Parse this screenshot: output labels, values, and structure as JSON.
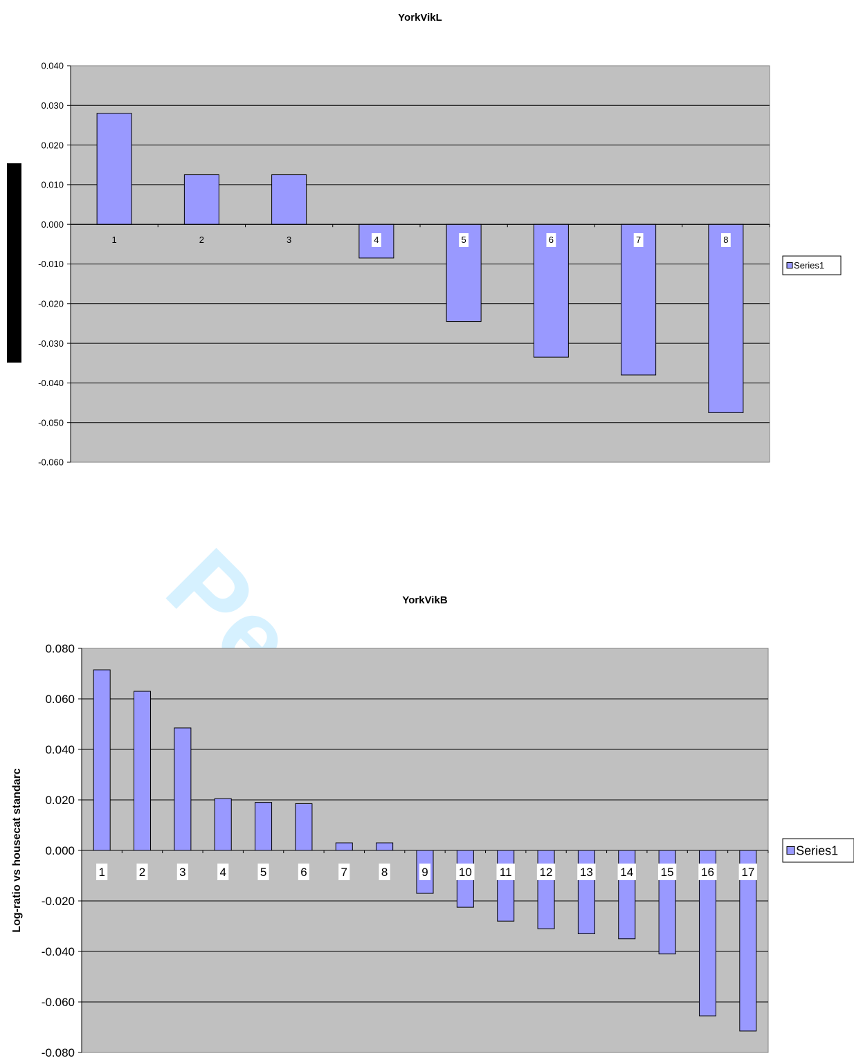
{
  "watermark": "Peer",
  "colors": {
    "plot_bg": "#c0c0c0",
    "bar_fill": "#9999ff",
    "bar_stroke": "#000000",
    "grid": "#000000"
  },
  "chart_data": [
    {
      "type": "bar",
      "title": "YorkVikL",
      "xlabel": "",
      "ylabel": "",
      "categories": [
        "1",
        "2",
        "3",
        "4",
        "5",
        "6",
        "7",
        "8"
      ],
      "series": [
        {
          "name": "Series1",
          "values": [
            0.028,
            0.0125,
            0.0125,
            -0.0085,
            -0.0245,
            -0.0335,
            -0.038,
            -0.0475
          ]
        }
      ],
      "ylim": [
        -0.06,
        0.04
      ],
      "yticks": [
        "0.040",
        "0.030",
        "0.020",
        "0.010",
        "0.000",
        "-0.010",
        "-0.020",
        "-0.030",
        "-0.040",
        "-0.050",
        "-0.060"
      ],
      "grid": true,
      "legend": "right"
    },
    {
      "type": "bar",
      "title": "YorkVikB",
      "xlabel": "",
      "ylabel": "Log-ratio vs housecat standarc",
      "categories": [
        "1",
        "2",
        "3",
        "4",
        "5",
        "6",
        "7",
        "8",
        "9",
        "10",
        "11",
        "12",
        "13",
        "14",
        "15",
        "16",
        "17"
      ],
      "series": [
        {
          "name": "Series1",
          "values": [
            0.0715,
            0.063,
            0.0485,
            0.0205,
            0.019,
            0.0185,
            0.003,
            0.003,
            -0.017,
            -0.0225,
            -0.028,
            -0.031,
            -0.033,
            -0.035,
            -0.041,
            -0.0655,
            -0.0715
          ]
        }
      ],
      "ylim": [
        -0.08,
        0.08
      ],
      "yticks": [
        "0.080",
        "0.060",
        "0.040",
        "0.020",
        "0.000",
        "-0.020",
        "-0.040",
        "-0.060",
        "-0.080"
      ],
      "grid": true,
      "legend": "right"
    }
  ]
}
